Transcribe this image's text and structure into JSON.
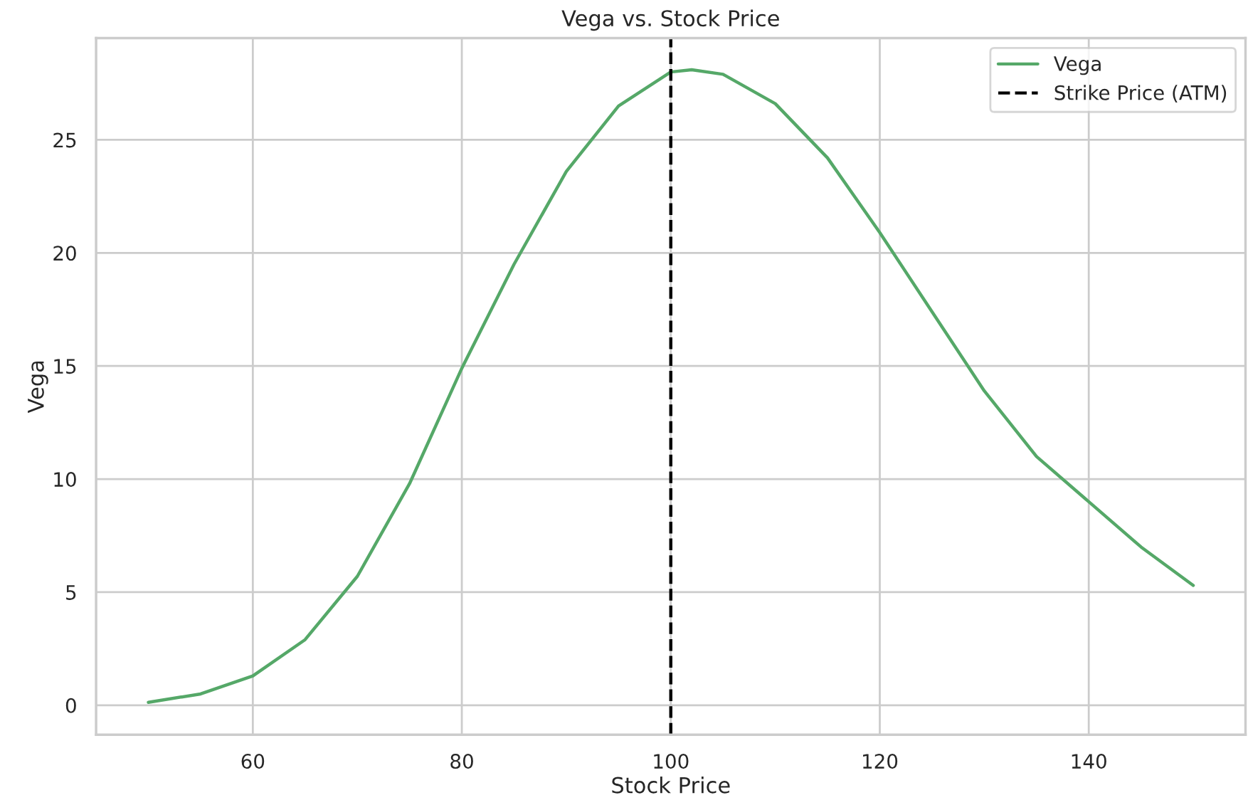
{
  "chart_data": {
    "type": "line",
    "title": "Vega vs. Stock Price",
    "xlabel": "Stock Price",
    "ylabel": "Vega",
    "series": [
      {
        "name": "Vega",
        "color": "#55a868",
        "x": [
          50,
          55,
          60,
          65,
          70,
          75,
          80,
          85,
          90,
          95,
          100,
          102,
          105,
          110,
          115,
          120,
          125,
          130,
          135,
          140,
          145,
          150
        ],
        "values": [
          0.13,
          0.5,
          1.3,
          2.9,
          5.7,
          9.8,
          14.9,
          19.5,
          23.6,
          26.5,
          28.0,
          28.1,
          27.9,
          26.6,
          24.2,
          20.9,
          17.4,
          13.9,
          11.0,
          9.0,
          7.0,
          5.3
        ]
      }
    ],
    "ref_lines": [
      {
        "axis": "x",
        "value": 100,
        "label": "Strike Price (ATM)",
        "color": "#000000",
        "line_style": "dashed"
      }
    ],
    "xlim": [
      45,
      155
    ],
    "ylim": [
      -1.3,
      29.5
    ],
    "xticks": [
      60,
      80,
      100,
      120,
      140
    ],
    "yticks": [
      0,
      5,
      10,
      15,
      20,
      25
    ],
    "grid": true,
    "legend": "top right"
  }
}
